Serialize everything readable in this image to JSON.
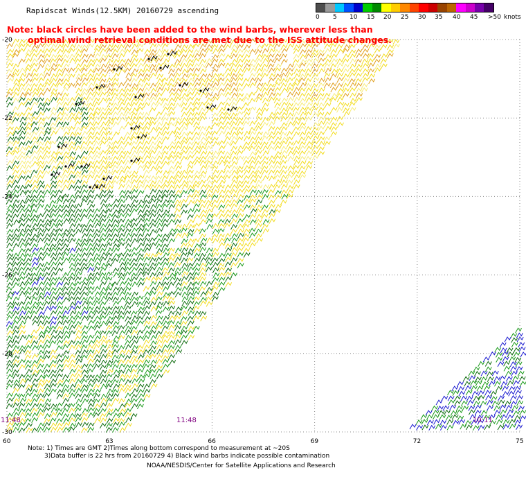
{
  "header": {
    "title": "Rapidscat Winds(12.5KM) 20160729 ascending",
    "note_line1": "Note: black circles have been added to the wind barbs, wherever less than",
    "note_line2": "optimal wind retrieval conditions are met due to the ISS attitude changes."
  },
  "legend": {
    "unit": "knots",
    "labels": [
      "0",
      "5",
      "10",
      "15",
      "20",
      "25",
      "30",
      "35",
      "40",
      "45",
      ">50"
    ],
    "colors": [
      "#4d4d4d",
      "#9a9a9a",
      "#00c8ff",
      "#0050ff",
      "#0000cc",
      "#00cc00",
      "#008800",
      "#ffff00",
      "#ffcc00",
      "#ff8800",
      "#ff4400",
      "#ff0000",
      "#cc0000",
      "#994400",
      "#bb6600",
      "#ff00ff",
      "#cc00cc",
      "#7700aa",
      "#440066"
    ]
  },
  "map": {
    "lat_labels": [
      "-20",
      "-22",
      "-24",
      "-26",
      "-28",
      "-30"
    ],
    "lon_labels": [
      "60",
      "63",
      "66",
      "69",
      "72",
      "75"
    ],
    "times": [
      "11:48",
      "11:48",
      "10:11"
    ],
    "lat_range": [
      -30,
      -20
    ],
    "lon_range": [
      60,
      75
    ]
  },
  "footer": {
    "line1": "Note: 1) Times are GMT 2)Times along bottom correspond to measurement at ~20S",
    "line2": "3)Data buffer is 22 hrs from 20160729 4) Black wind barbs indicate possible contamination",
    "line3": "NOAA/NESDIS/Center for Satellite Applications and Research"
  },
  "colors": {
    "grid": "#888888",
    "barb_yellow": "#f2dc1e",
    "barb_lightyellow": "#f7ec78",
    "barb_orange": "#e0a020",
    "barb_green": "#1a9a1a",
    "barb_darkgreen": "#0c6a0c",
    "barb_blue": "#1a1ad0",
    "time_label": "#800080",
    "note": "#ff0000"
  }
}
